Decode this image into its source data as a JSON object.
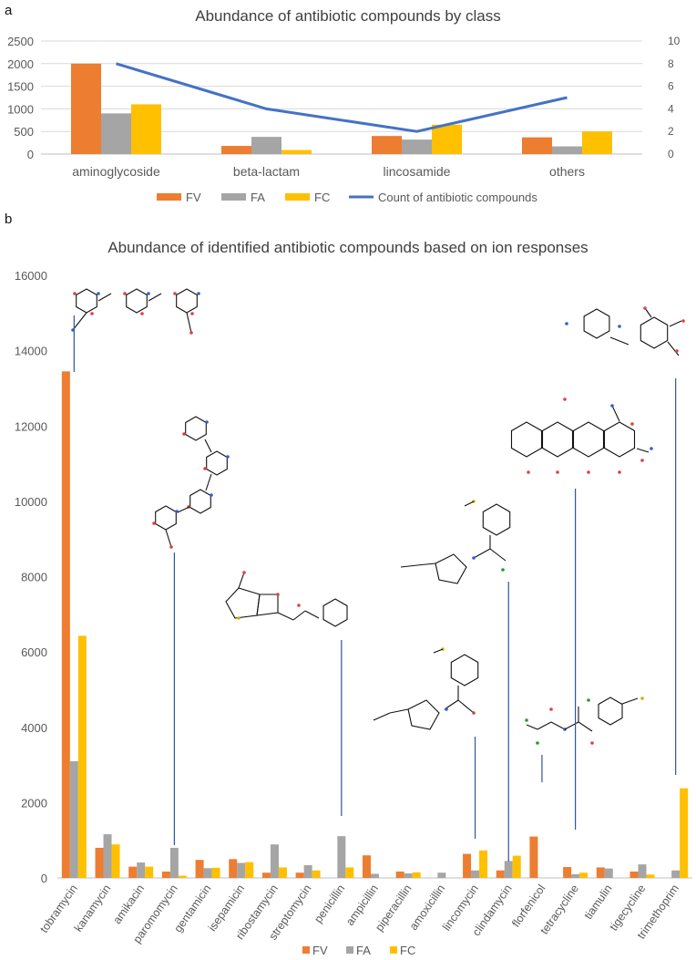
{
  "panels": {
    "a": {
      "letter": "a",
      "title": "Abundance of antibiotic compounds by class"
    },
    "b": {
      "letter": "b",
      "title": "Abundance of identified antibiotic compounds based on ion responses"
    }
  },
  "colors": {
    "FV": "#ED7D31",
    "FA": "#A5A5A5",
    "FC": "#FFC000",
    "count": "#4472C4",
    "grid": "#d9d9d9",
    "structure_line": "#2F5597"
  },
  "chart_data": [
    {
      "type": "bar",
      "title": "Abundance of antibiotic compounds by class",
      "categories": [
        "aminoglycoside",
        "beta-lactam",
        "lincosamide",
        "others"
      ],
      "series": [
        {
          "name": "FV",
          "values": [
            2000,
            180,
            400,
            370
          ]
        },
        {
          "name": "FA",
          "values": [
            900,
            380,
            320,
            170
          ]
        },
        {
          "name": "FC",
          "values": [
            1100,
            90,
            650,
            500
          ]
        }
      ],
      "line_series": {
        "name": "Count of antibiotic compounds",
        "values": [
          8,
          4,
          2,
          5
        ],
        "axis": "secondary"
      },
      "ylim": [
        0,
        2500
      ],
      "yticks": [
        "0",
        "500",
        "1000",
        "1500",
        "2000",
        "2500"
      ],
      "y2lim": [
        0,
        10
      ],
      "y2ticks": [
        "0",
        "2",
        "4",
        "6",
        "8",
        "10"
      ],
      "legend": "bottom"
    },
    {
      "type": "bar",
      "title": "Abundance of identified antibiotic compounds based on ion responses",
      "categories": [
        "tobramycin",
        "kanamycin",
        "amikacin",
        "paromomycin",
        "gentamicin",
        "isepamicin",
        "ribostamycin",
        "streptomycin",
        "penicillin",
        "ampicillin",
        "piperacillin",
        "amoxicillin",
        "lincomycin",
        "clindamycin",
        "florfenicol",
        "tetracycline",
        "tiamulin",
        "tigecycline",
        "trimethoprim"
      ],
      "series": [
        {
          "name": "FV",
          "values": [
            13450,
            800,
            300,
            170,
            480,
            500,
            140,
            140,
            0,
            600,
            170,
            0,
            640,
            200,
            1100,
            290,
            280,
            170,
            0
          ]
        },
        {
          "name": "FA",
          "values": [
            3100,
            1160,
            410,
            800,
            260,
            400,
            890,
            340,
            1110,
            110,
            120,
            140,
            200,
            450,
            0,
            100,
            250,
            360,
            200
          ]
        },
        {
          "name": "FC",
          "values": [
            6430,
            890,
            300,
            60,
            270,
            420,
            280,
            200,
            280,
            0,
            150,
            0,
            730,
            590,
            0,
            140,
            0,
            90,
            2380
          ]
        }
      ],
      "ylim": [
        0,
        16000
      ],
      "yticks": [
        "0",
        "2000",
        "4000",
        "6000",
        "8000",
        "10000",
        "12000",
        "14000",
        "16000"
      ],
      "legend": "bottom",
      "structure_callouts": [
        "tobramycin",
        "paromomycin",
        "penicillin",
        "lincomycin",
        "clindamycin",
        "florfenicol",
        "tetracycline",
        "trimethoprim"
      ]
    }
  ]
}
